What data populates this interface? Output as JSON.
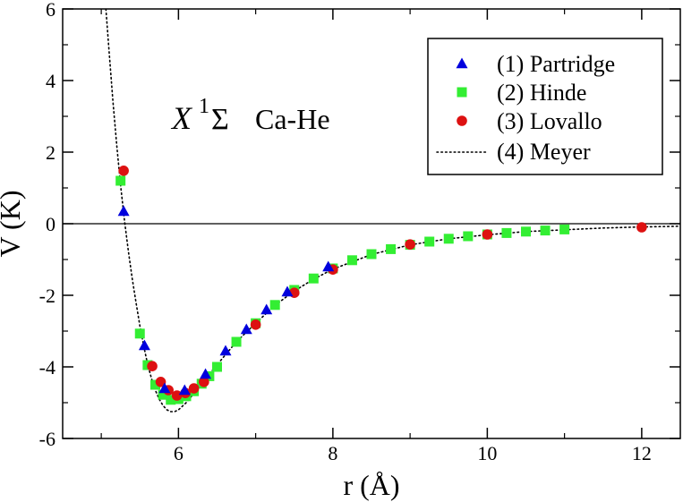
{
  "chart_data": {
    "type": "scatter",
    "title": "X 1Σ Ca-He",
    "annotation": {
      "main": "X",
      "superscript": "1",
      "sigma": "Σ",
      "species": "Ca-He"
    },
    "xlabel": "r (Å)",
    "ylabel": "V (K)",
    "xlim": [
      4.5,
      12.5
    ],
    "ylim": [
      -6,
      6
    ],
    "xticks": [
      6,
      8,
      10,
      12
    ],
    "xtick_labels": [
      "6",
      "8",
      "10",
      "12"
    ],
    "yticks": [
      -6,
      -4,
      -2,
      0,
      2,
      4,
      6
    ],
    "ytick_labels": [
      "-6",
      "-4",
      "-2",
      "0",
      "2",
      "4",
      "6"
    ],
    "zero_line": true,
    "grid": false,
    "legend_position": "top-right",
    "series": [
      {
        "name": "(1) Partridge",
        "marker": "triangle",
        "color": "#0000dd",
        "x": [
          5.29,
          5.56,
          5.82,
          6.08,
          6.35,
          6.61,
          6.88,
          7.14,
          7.41,
          7.94
        ],
        "y": [
          0.35,
          -3.4,
          -4.6,
          -4.65,
          -4.2,
          -3.55,
          -2.95,
          -2.4,
          -1.9,
          -1.2
        ]
      },
      {
        "name": "(2) Hinde",
        "marker": "square",
        "color": "#33ee33",
        "x": [
          5.25,
          5.5,
          5.6,
          5.7,
          5.8,
          5.9,
          6.0,
          6.1,
          6.2,
          6.3,
          6.4,
          6.5,
          6.75,
          7.0,
          7.25,
          7.5,
          7.75,
          8.0,
          8.25,
          8.5,
          8.75,
          9.0,
          9.25,
          9.5,
          9.75,
          10.0,
          10.25,
          10.5,
          10.75,
          11.0
        ],
        "y": [
          1.2,
          -3.07,
          -3.95,
          -4.5,
          -4.78,
          -4.92,
          -4.9,
          -4.82,
          -4.68,
          -4.47,
          -4.26,
          -4.0,
          -3.3,
          -2.78,
          -2.27,
          -1.85,
          -1.53,
          -1.25,
          -1.02,
          -0.85,
          -0.71,
          -0.59,
          -0.5,
          -0.42,
          -0.35,
          -0.3,
          -0.26,
          -0.22,
          -0.19,
          -0.16
        ]
      },
      {
        "name": "(3) Lovallo",
        "marker": "circle",
        "color": "#dd1111",
        "x": [
          5.29,
          5.66,
          5.77,
          5.87,
          5.98,
          6.09,
          6.2,
          6.33,
          7.0,
          7.5,
          8.0,
          9.0,
          10.0,
          12.0
        ],
        "y": [
          1.48,
          -3.98,
          -4.42,
          -4.65,
          -4.8,
          -4.73,
          -4.6,
          -4.42,
          -2.82,
          -1.93,
          -1.28,
          -0.58,
          -0.3,
          -0.1
        ]
      },
      {
        "name": "(4) Meyer",
        "marker": "dotted-line",
        "color": "#000000",
        "x": [
          5.06,
          5.1,
          5.15,
          5.2,
          5.25,
          5.3,
          5.35,
          5.4,
          5.45,
          5.5,
          5.55,
          5.6,
          5.65,
          5.7,
          5.75,
          5.8,
          5.85,
          5.9,
          5.95,
          6.0,
          6.1,
          6.2,
          6.3,
          6.4,
          6.5,
          6.75,
          7.0,
          7.25,
          7.5,
          7.75,
          8.0,
          8.5,
          9.0,
          9.5,
          10.0,
          10.5,
          11.0,
          11.5,
          12.0,
          12.5
        ],
        "y": [
          6.0,
          4.85,
          3.45,
          2.2,
          1.08,
          0.1,
          -0.75,
          -1.52,
          -2.2,
          -2.85,
          -3.42,
          -3.92,
          -4.32,
          -4.65,
          -4.9,
          -5.08,
          -5.2,
          -5.25,
          -5.25,
          -5.2,
          -5.0,
          -4.74,
          -4.47,
          -4.2,
          -3.94,
          -3.3,
          -2.78,
          -2.28,
          -1.88,
          -1.55,
          -1.27,
          -0.86,
          -0.59,
          -0.42,
          -0.31,
          -0.22,
          -0.17,
          -0.12,
          -0.09,
          -0.07
        ]
      }
    ]
  }
}
